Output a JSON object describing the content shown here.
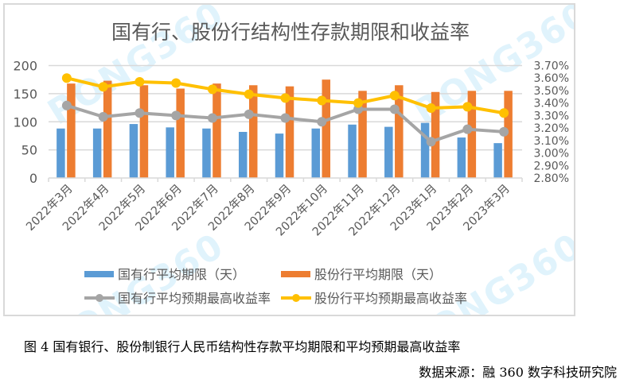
{
  "watermark": "RONG360",
  "caption": "图 4 国有银行、股份制银行人民币结构性存款平均期限和平均预期最高收益率",
  "source": "数据来源：融 360 数字科技研究院",
  "colors": {
    "state_bar": "#5B9BD5",
    "joint_bar": "#ED7D31",
    "state_line": "#A5A5A5",
    "joint_line": "#FFC000",
    "grid": "#d9d9d9",
    "text": "#595959"
  },
  "chart_data": {
    "type": "bar",
    "title": "国有行、股份行结构性存款期限和收益率",
    "categories": [
      "2022年3月",
      "2022年4月",
      "2022年5月",
      "2022年6月",
      "2022年7月",
      "2022年8月",
      "2022年9月",
      "2022年10月",
      "2022年11月",
      "2022年12月",
      "2023年1月",
      "2023年2月",
      "2023年3月"
    ],
    "y_left": {
      "range": [
        0,
        200
      ],
      "ticks": [
        "0",
        "50",
        "100",
        "150",
        "200"
      ],
      "tick_values": [
        0,
        50,
        100,
        150,
        200
      ]
    },
    "y_right": {
      "range": [
        2.8,
        3.7
      ],
      "ticks": [
        "2.80%",
        "2.90%",
        "3.00%",
        "3.10%",
        "3.20%",
        "3.30%",
        "3.40%",
        "3.50%",
        "3.60%",
        "3.70%"
      ],
      "tick_values": [
        2.8,
        2.9,
        3.0,
        3.1,
        3.2,
        3.3,
        3.4,
        3.5,
        3.6,
        3.7
      ]
    },
    "grid": true,
    "legend_position": "bottom",
    "series": [
      {
        "name": "国有行平均期限（天）",
        "type": "bar",
        "axis": "left",
        "values": [
          88,
          88,
          96,
          90,
          88,
          82,
          79,
          88,
          95,
          91,
          98,
          72,
          62
        ]
      },
      {
        "name": "股份行平均期限（天）",
        "type": "bar",
        "axis": "left",
        "values": [
          168,
          173,
          165,
          159,
          168,
          165,
          163,
          175,
          155,
          165,
          153,
          155,
          155
        ]
      },
      {
        "name": "国有行平均预期最高收益率",
        "type": "line",
        "axis": "right",
        "unit": "%",
        "values": [
          3.38,
          3.29,
          3.32,
          3.3,
          3.28,
          3.31,
          3.28,
          3.25,
          3.35,
          3.35,
          3.09,
          3.19,
          3.17
        ]
      },
      {
        "name": "股份行平均预期最高收益率",
        "type": "line",
        "axis": "right",
        "unit": "%",
        "values": [
          3.6,
          3.53,
          3.57,
          3.56,
          3.51,
          3.47,
          3.44,
          3.42,
          3.4,
          3.46,
          3.36,
          3.37,
          3.32
        ]
      }
    ]
  }
}
